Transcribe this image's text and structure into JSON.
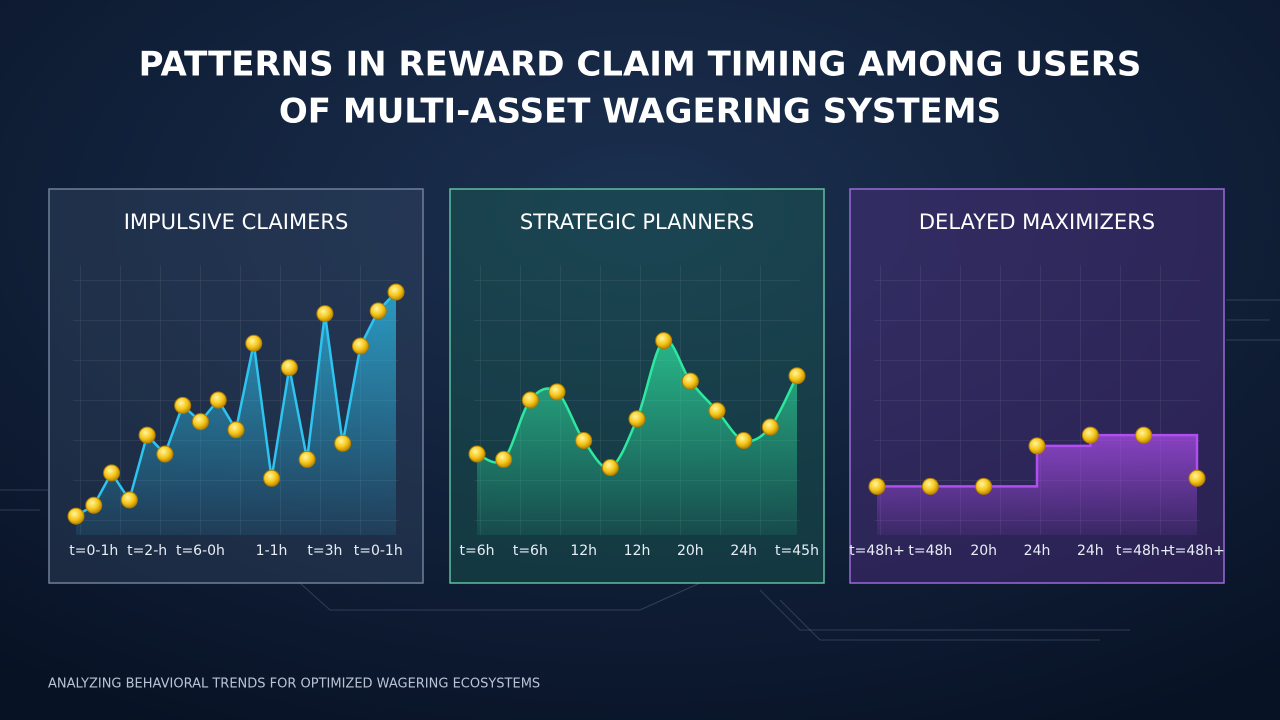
{
  "title": [
    "PATTERNS IN REWARD CLAIM TIMING AMONG USERS",
    "OF MULTI-ASSET WAGERING SYSTEMS"
  ],
  "footer": "ANALYZING BEHAVIORAL TRENDS FOR OPTIMIZED WAGERING ECOSYSTEMS",
  "chart_data": [
    {
      "type": "line",
      "title": "IMPULSIVE CLAIMERS",
      "color": "#2ec4f0",
      "ylim": [
        0,
        100
      ],
      "categories": [
        null,
        "t=0-1h",
        null,
        null,
        "t=2-h",
        null,
        null,
        "t=6-0h",
        null,
        null,
        null,
        "1-1h",
        null,
        null,
        "t=3h",
        null,
        null,
        "t=0-1h",
        null
      ],
      "values": [
        7,
        11,
        23,
        13,
        37,
        30,
        48,
        42,
        50,
        39,
        71,
        21,
        62,
        28,
        82,
        34,
        70,
        83,
        90
      ]
    },
    {
      "type": "smooth",
      "title": "STRATEGIC PLANNERS",
      "color": "#2ee8a0",
      "ylim": [
        0,
        100
      ],
      "categories": [
        "t=6h",
        null,
        "t=6h",
        null,
        "12h",
        null,
        "12h",
        null,
        "20h",
        null,
        "24h",
        null,
        "t=45h"
      ],
      "values": [
        30,
        28,
        50,
        53,
        35,
        25,
        43,
        72,
        57,
        46,
        35,
        40,
        59
      ]
    },
    {
      "type": "step",
      "title": "DELAYED MAXIMIZERS",
      "color": "#b04ef0",
      "ylim": [
        0,
        100
      ],
      "categories": [
        "t=48h+",
        "t=48h",
        "20h",
        "24h",
        "24h",
        "t=48h+",
        "t=48h+"
      ],
      "values": [
        18,
        18,
        18,
        33,
        37,
        37,
        21
      ]
    }
  ]
}
